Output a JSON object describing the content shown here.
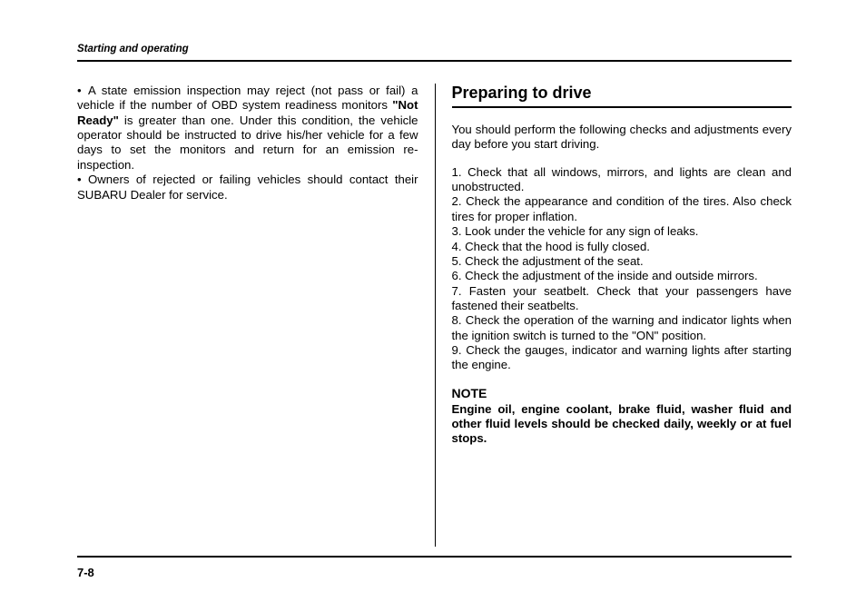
{
  "header": {
    "section": "Starting and operating"
  },
  "left": {
    "bullet1_pre": "A state emission inspection may reject (not pass or fail) a vehicle if the number of OBD system readiness monitors ",
    "bullet1_bold": "\"Not Ready\"",
    "bullet1_post": " is greater than one. Under this condition, the vehicle operator should be instructed to drive his/her vehicle for a few days to set the monitors and return for an emission re-inspection.",
    "bullet2": "Owners of rejected or failing vehicles should contact their SUBARU Dealer for service."
  },
  "right": {
    "title": "Preparing to drive",
    "intro": "You should perform the following checks and adjustments every day before you start driving.",
    "items": {
      "i1": "1.  Check that all windows, mirrors, and lights are clean and unobstructed.",
      "i2": "2.  Check the appearance and condition of the tires. Also check tires for proper inflation.",
      "i3": "3.  Look under the vehicle for any sign of leaks.",
      "i4": "4.  Check that the hood is fully closed.",
      "i5": "5.  Check the adjustment of the seat.",
      "i6": "6.  Check the adjustment of the inside and outside mirrors.",
      "i7": "7.  Fasten your seatbelt. Check that your passengers have fastened their seatbelts.",
      "i8": "8.  Check the operation of the warning and indicator lights when the ignition switch is turned to the \"ON\" position.",
      "i9": "9.  Check the gauges, indicator and warning lights after starting the engine."
    },
    "note_title": "NOTE",
    "note_body": "Engine oil, engine coolant, brake fluid, washer fluid and other fluid levels should be checked daily, weekly or at fuel stops."
  },
  "footer": {
    "page": "7-8"
  },
  "glyphs": {
    "bullet": "•"
  }
}
